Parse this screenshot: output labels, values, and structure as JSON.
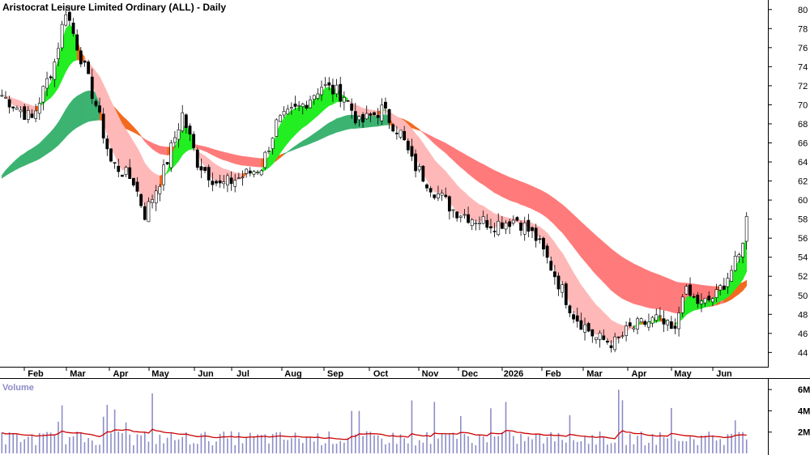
{
  "chart_data": {
    "type": "candlestick",
    "title": "Aristocrat Leisure Limited Ordinary (ALL) - Daily",
    "price_ylim": [
      42.5,
      81
    ],
    "price_ticks": [
      "44",
      "46",
      "48",
      "50",
      "52",
      "54",
      "56",
      "58",
      "60",
      "62",
      "64",
      "66",
      "68",
      "70",
      "72",
      "74",
      "76",
      "78",
      "80"
    ],
    "x_ticks": [
      "Feb",
      "Mar",
      "Apr",
      "May",
      "Jun",
      "Jul",
      "Aug",
      "Sep",
      "Oct",
      "Nov",
      "Dec",
      "2026",
      "Feb",
      "Mar",
      "Apr",
      "May",
      "Jun"
    ],
    "volume_label": "Volume",
    "volume_ticks": [
      "2M",
      "4M",
      "6M"
    ],
    "volume_ylim": [
      0,
      7
    ],
    "grid": false,
    "colors": {
      "short_band_up": "#22ee22",
      "short_band_down": "#ffb8b8",
      "long_band_up": "#3cb371",
      "long_band_down": "#ff7b7b",
      "band_mixed": "#f36a1e",
      "candle": "#000000",
      "volume_bar": "#8c8cc8",
      "volume_avg": "#cc0000"
    },
    "price_path": [
      [
        0,
        71
      ],
      [
        8,
        68.5
      ],
      [
        14,
        74.5
      ],
      [
        17,
        80
      ],
      [
        21,
        75
      ],
      [
        25,
        70
      ],
      [
        29,
        64
      ],
      [
        35,
        62
      ],
      [
        38,
        58.5
      ],
      [
        43,
        63
      ],
      [
        48,
        69
      ],
      [
        52,
        64
      ],
      [
        58,
        61.5
      ],
      [
        64,
        62.5
      ],
      [
        69,
        63.5
      ],
      [
        73,
        68
      ],
      [
        80,
        70
      ],
      [
        85,
        72
      ],
      [
        91,
        71
      ],
      [
        95,
        68
      ],
      [
        101,
        69.5
      ],
      [
        106,
        67
      ],
      [
        109,
        64
      ],
      [
        115,
        61
      ],
      [
        120,
        59
      ],
      [
        126,
        58
      ],
      [
        131,
        57.5
      ],
      [
        137,
        58
      ],
      [
        142,
        56
      ],
      [
        146,
        53
      ],
      [
        152,
        48
      ],
      [
        158,
        45.5
      ],
      [
        163,
        45
      ],
      [
        167,
        46.5
      ],
      [
        174,
        47.5
      ],
      [
        179,
        46
      ],
      [
        181,
        50.5
      ],
      [
        186,
        49
      ],
      [
        190,
        50
      ],
      [
        196,
        54
      ],
      [
        198,
        58
      ]
    ],
    "volume_baseline": 1.5
  }
}
